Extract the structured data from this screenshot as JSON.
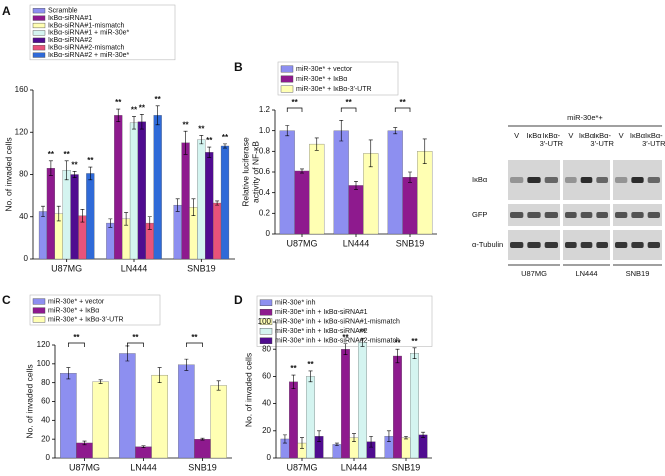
{
  "chart_data": [
    {
      "type": "bar",
      "panel": "A",
      "ylabel": [
        "No. of invaded cells"
      ],
      "categories": [
        "U87MG",
        "LN444",
        "SNB19"
      ],
      "ylim": [
        0,
        160
      ],
      "yticks": [
        0,
        40,
        80,
        120,
        160
      ],
      "series": [
        {
          "name": "Scramble",
          "color": "#8d8ff0",
          "values": [
            45,
            34,
            51
          ],
          "errors": [
            5,
            4,
            6
          ],
          "significance": [
            null,
            null,
            null
          ]
        },
        {
          "name": "IκBα-siRNA#1",
          "color": "#8e1a8e",
          "values": [
            86,
            136,
            110
          ],
          "errors": [
            7,
            6,
            11
          ],
          "significance": [
            "**",
            "**",
            "**"
          ]
        },
        {
          "name": "IκBα-siRNA#1-mismatch",
          "color": "#ffffb3",
          "values": [
            43,
            38,
            49
          ],
          "errors": [
            7,
            6,
            8
          ],
          "significance": [
            null,
            null,
            null
          ]
        },
        {
          "name": "IκBα-siRNA#1 + miR-30e*",
          "color": "#d4f4f0",
          "values": [
            84,
            129,
            113
          ],
          "errors": [
            9,
            6,
            4
          ],
          "significance": [
            "**",
            "**",
            "**"
          ]
        },
        {
          "name": "IκBα-siRNA#2",
          "color": "#500c90",
          "values": [
            80,
            130,
            101
          ],
          "errors": [
            3,
            7,
            5
          ],
          "significance": [
            "**",
            "**",
            "**"
          ]
        },
        {
          "name": "IκBα-siRNA#2-mismatch",
          "color": "#e8537a",
          "values": [
            41,
            34,
            53
          ],
          "errors": [
            6,
            6,
            2
          ],
          "significance": [
            null,
            null,
            null
          ]
        },
        {
          "name": "IκBα-siRNA#2 + miR-30e*",
          "color": "#2f6ad8",
          "values": [
            81,
            136,
            107
          ],
          "errors": [
            6,
            9,
            2
          ],
          "significance": [
            "**",
            "**",
            "**"
          ]
        }
      ]
    },
    {
      "type": "bar",
      "panel": "B",
      "ylabel": [
        "Relative luciferase",
        "activity of NF-κB"
      ],
      "categories": [
        "U87MG",
        "LN444",
        "SNB19"
      ],
      "ylim": [
        0,
        1.2
      ],
      "yticks": [
        0,
        0.2,
        0.4,
        0.6,
        0.8,
        {
          "value": 1,
          "label": "1.0"
        },
        1.2
      ],
      "brackets": [
        "**",
        "**",
        "**"
      ],
      "series": [
        {
          "name": "miR-30e* + vector",
          "color": "#8d8ff0",
          "values": [
            1.0,
            1.0,
            1.0
          ],
          "errors": [
            0.05,
            0.1,
            0.03
          ]
        },
        {
          "name": "miR-30e* + IκBα",
          "color": "#8e1a8e",
          "values": [
            0.61,
            0.47,
            0.55
          ],
          "errors": [
            0.02,
            0.04,
            0.05
          ]
        },
        {
          "name": "miR-30e* + IκBα-3′-UTR",
          "color": "#ffffb3",
          "values": [
            0.87,
            0.78,
            0.8
          ],
          "errors": [
            0.06,
            0.13,
            0.12
          ]
        }
      ]
    },
    {
      "type": "bar",
      "panel": "C",
      "ylabel": [
        "No. of invaded cells"
      ],
      "categories": [
        "U87MG",
        "LN444",
        "SNB19"
      ],
      "ylim": [
        0,
        120
      ],
      "yticks": [
        0,
        20,
        40,
        60,
        80,
        100,
        120
      ],
      "brackets": [
        "**",
        "**",
        "**"
      ],
      "series": [
        {
          "name": "miR-30e* + vector",
          "color": "#8d8ff0",
          "values": [
            90,
            111,
            99
          ],
          "errors": [
            6,
            8,
            6
          ]
        },
        {
          "name": "miR-30e* + IκBα",
          "color": "#8e1a8e",
          "values": [
            16,
            12,
            20
          ],
          "errors": [
            2,
            1,
            1
          ]
        },
        {
          "name": "miR-30e* + IκBα-3′-UTR",
          "color": "#ffffb3",
          "values": [
            81,
            88,
            77
          ],
          "errors": [
            2,
            8,
            5
          ]
        }
      ]
    },
    {
      "type": "bar",
      "panel": "D",
      "ylabel": [
        "No. of invaded cells"
      ],
      "categories": [
        "U87MG",
        "LN444",
        "SNB19"
      ],
      "ylim": [
        0,
        100
      ],
      "yticks": [
        0,
        20,
        40,
        60,
        80,
        100
      ],
      "series": [
        {
          "name": "miR-30e* inh",
          "color": "#8d8ff0",
          "values": [
            14,
            10,
            16
          ],
          "errors": [
            3,
            1,
            4
          ],
          "significance": [
            null,
            null,
            null
          ]
        },
        {
          "name": "miR-30e* inh + IκBα-siRNA#1",
          "color": "#8e1a8e",
          "values": [
            56,
            80,
            75
          ],
          "errors": [
            5,
            4,
            5
          ],
          "significance": [
            "**",
            "**",
            "**"
          ]
        },
        {
          "name": "miR-30e* inh + IκBα-siRNA#1-mismatch",
          "color": "#ffffb3",
          "values": [
            11,
            15,
            15
          ],
          "errors": [
            4,
            3,
            1
          ],
          "significance": [
            null,
            null,
            null
          ]
        },
        {
          "name": "miR-30e* inh + IκBα-siRNA#2",
          "color": "#d4f4f0",
          "values": [
            60,
            85,
            77
          ],
          "errors": [
            4,
            3,
            4
          ],
          "significance": [
            "**",
            "**",
            "**"
          ]
        },
        {
          "name": "miR-30e* inh + IκBα-siRNA#2-mismatch",
          "color": "#500c90",
          "values": [
            16,
            12,
            17
          ],
          "errors": [
            4,
            4,
            2
          ],
          "significance": [
            null,
            null,
            null
          ]
        }
      ]
    }
  ],
  "blot": {
    "header": "miR-30e*+",
    "lanes": [
      [
        "V"
      ],
      [
        "IκBα"
      ],
      [
        "IκBα-",
        "3′-UTR"
      ]
    ],
    "rows": [
      "IκBα",
      "GFP",
      "α-Tubulin"
    ],
    "groups": [
      "U87MG",
      "LN444",
      "SNB19"
    ]
  }
}
